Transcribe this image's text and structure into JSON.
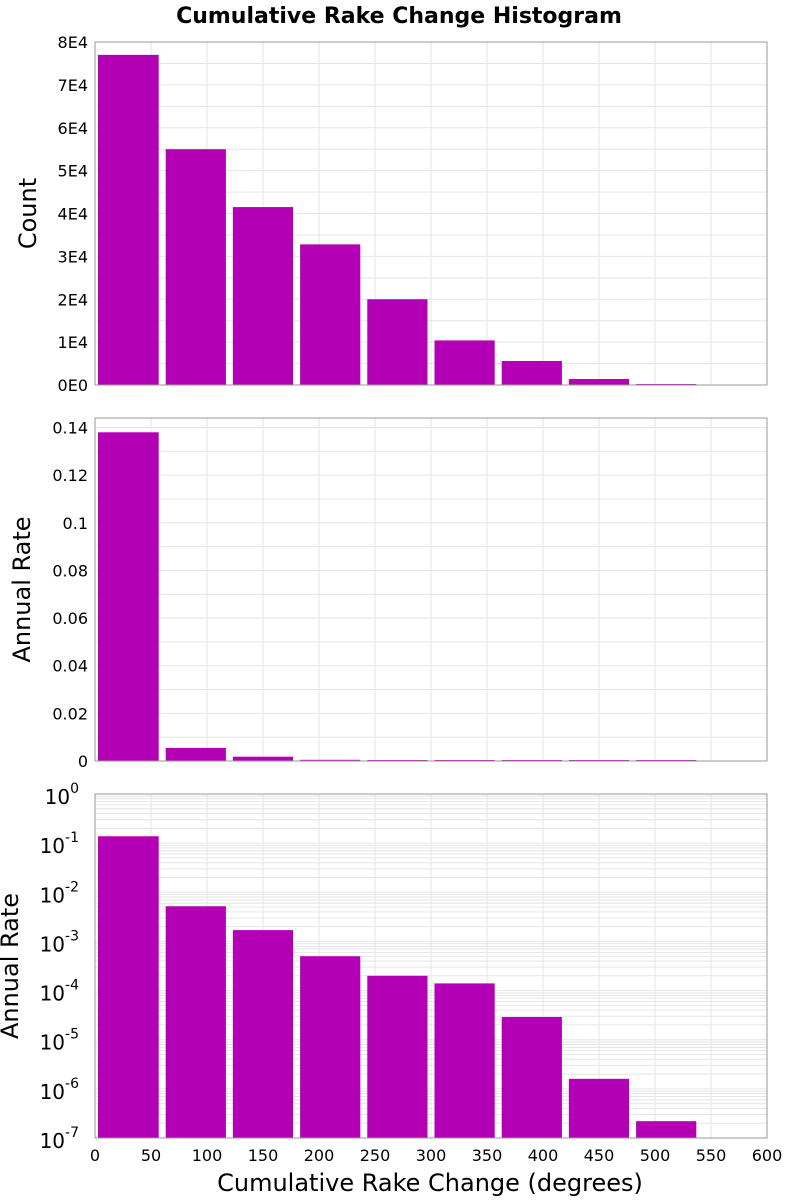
{
  "title": "Cumulative Rake Change Histogram",
  "colors": {
    "bar": "#b400b4",
    "grid": "#e6e6e6",
    "frame": "#999999"
  },
  "chart_data": [
    {
      "type": "bar",
      "id": "count",
      "ylabel": "Count",
      "xlim": [
        0,
        600
      ],
      "ylim": [
        0,
        80000
      ],
      "grid": true,
      "bin_width": 60,
      "x": [
        30,
        90,
        150,
        210,
        270,
        330,
        390,
        450,
        510,
        570
      ],
      "values": [
        77000,
        55000,
        41500,
        32800,
        20000,
        10400,
        5600,
        1400,
        200,
        0
      ],
      "yticks": [
        {
          "value": 0,
          "label": "0E0"
        },
        {
          "value": 10000,
          "label": "1E4"
        },
        {
          "value": 20000,
          "label": "2E4"
        },
        {
          "value": 30000,
          "label": "3E4"
        },
        {
          "value": 40000,
          "label": "4E4"
        },
        {
          "value": 50000,
          "label": "5E4"
        },
        {
          "value": 60000,
          "label": "6E4"
        },
        {
          "value": 70000,
          "label": "7E4"
        },
        {
          "value": 80000,
          "label": "8E4"
        }
      ]
    },
    {
      "type": "bar",
      "id": "annual-rate-linear",
      "ylabel": "Annual Rate",
      "xlim": [
        0,
        600
      ],
      "ylim": [
        0,
        0.144
      ],
      "grid": true,
      "bin_width": 60,
      "x": [
        30,
        90,
        150,
        210,
        270,
        330,
        390,
        450,
        510,
        570
      ],
      "values": [
        0.138,
        0.0055,
        0.0018,
        0.0005,
        0.0002,
        0.00014,
        3e-05,
        1.7e-06,
        2.2e-07,
        0
      ],
      "yticks": [
        {
          "value": 0,
          "label": "0"
        },
        {
          "value": 0.02,
          "label": "0.02"
        },
        {
          "value": 0.04,
          "label": "0.04"
        },
        {
          "value": 0.06,
          "label": "0.06"
        },
        {
          "value": 0.08,
          "label": "0.08"
        },
        {
          "value": 0.1,
          "label": "0.1"
        },
        {
          "value": 0.12,
          "label": "0.12"
        },
        {
          "value": 0.14,
          "label": "0.14"
        }
      ]
    },
    {
      "type": "bar",
      "id": "annual-rate-log",
      "ylabel": "Annual Rate",
      "xlabel": "Cumulative Rake Change (degrees)",
      "xlim": [
        0,
        600
      ],
      "ylim": [
        1e-07,
        1
      ],
      "log_y": true,
      "grid": true,
      "bin_width": 60,
      "x": [
        30,
        90,
        150,
        210,
        270,
        330,
        390,
        450,
        510,
        570
      ],
      "values": [
        0.138,
        0.0052,
        0.0017,
        0.0005,
        0.0002,
        0.00014,
        2.9e-05,
        1.6e-06,
        2.2e-07,
        0
      ],
      "yticks": [
        {
          "value": 1,
          "base": "10",
          "exp": "0"
        },
        {
          "value": 0.1,
          "base": "10",
          "exp": "-1"
        },
        {
          "value": 0.01,
          "base": "10",
          "exp": "-2"
        },
        {
          "value": 0.001,
          "base": "10",
          "exp": "-3"
        },
        {
          "value": 0.0001,
          "base": "10",
          "exp": "-4"
        },
        {
          "value": 1e-05,
          "base": "10",
          "exp": "-5"
        },
        {
          "value": 1e-06,
          "base": "10",
          "exp": "-6"
        },
        {
          "value": 1e-07,
          "base": "10",
          "exp": "-7"
        }
      ],
      "xticks": [
        {
          "value": 0,
          "label": "0"
        },
        {
          "value": 50,
          "label": "50"
        },
        {
          "value": 100,
          "label": "100"
        },
        {
          "value": 150,
          "label": "150"
        },
        {
          "value": 200,
          "label": "200"
        },
        {
          "value": 250,
          "label": "250"
        },
        {
          "value": 300,
          "label": "300"
        },
        {
          "value": 350,
          "label": "350"
        },
        {
          "value": 400,
          "label": "400"
        },
        {
          "value": 450,
          "label": "450"
        },
        {
          "value": 500,
          "label": "500"
        },
        {
          "value": 550,
          "label": "550"
        },
        {
          "value": 600,
          "label": "600"
        }
      ]
    }
  ]
}
